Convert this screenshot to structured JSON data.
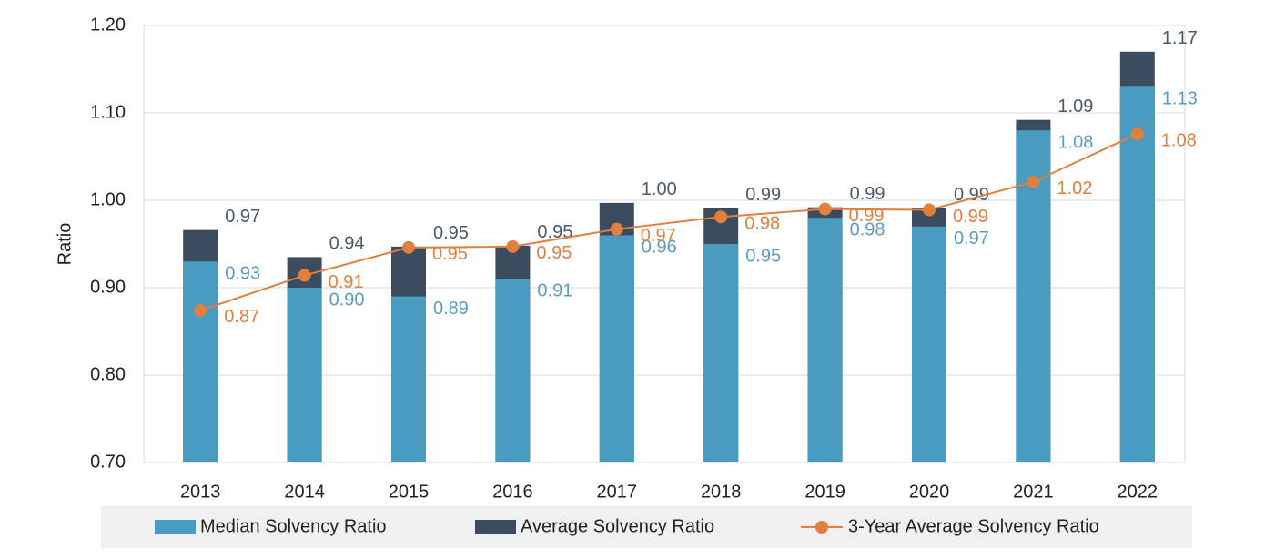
{
  "chart_data": {
    "type": "bar_line",
    "y_label": "Ratio",
    "categories": [
      "2013",
      "2014",
      "2015",
      "2016",
      "2017",
      "2018",
      "2019",
      "2020",
      "2021",
      "2022"
    ],
    "series": [
      {
        "name": "Median Solvency Ratio",
        "color": "#4a9bc0",
        "kind": "bar",
        "values": [
          0.93,
          0.9,
          0.89,
          0.91,
          0.96,
          0.95,
          0.98,
          0.97,
          1.08,
          1.13
        ],
        "value_labels": [
          "0.93",
          "0.90",
          "0.89",
          "0.91",
          "0.96",
          "0.95",
          "0.98",
          "0.97",
          "1.08",
          "1.13"
        ]
      },
      {
        "name": "Average Solvency Ratio",
        "color": "#3b4c5f",
        "kind": "bar",
        "values": [
          0.966,
          0.935,
          0.947,
          0.948,
          0.997,
          0.991,
          0.992,
          0.991,
          1.092,
          1.17
        ],
        "value_labels": [
          "0.97",
          "0.94",
          "0.95",
          "0.95",
          "1.00",
          "0.99",
          "0.99",
          "0.99",
          "1.09",
          "1.17"
        ]
      },
      {
        "name": "3-Year Average Solvency Ratio",
        "color": "#e07f3e",
        "kind": "line",
        "values": [
          0.874,
          0.914,
          0.946,
          0.947,
          0.967,
          0.981,
          0.99,
          0.989,
          1.021,
          1.076
        ],
        "value_labels": [
          "0.87",
          "0.91",
          "0.95",
          "0.95",
          "0.97",
          "0.98",
          "0.99",
          "0.99",
          "1.02",
          "1.08"
        ]
      }
    ],
    "ylim": [
      0.7,
      1.2
    ],
    "yticks": [
      {
        "value": 0.7,
        "label": "0.70"
      },
      {
        "value": 0.8,
        "label": "0.80"
      },
      {
        "value": 0.9,
        "label": "0.90"
      },
      {
        "value": 1.0,
        "label": "1.00"
      },
      {
        "value": 1.1,
        "label": "1.10"
      },
      {
        "value": 1.2,
        "label": "1.20"
      }
    ],
    "grid": true,
    "legend": "bottom"
  }
}
